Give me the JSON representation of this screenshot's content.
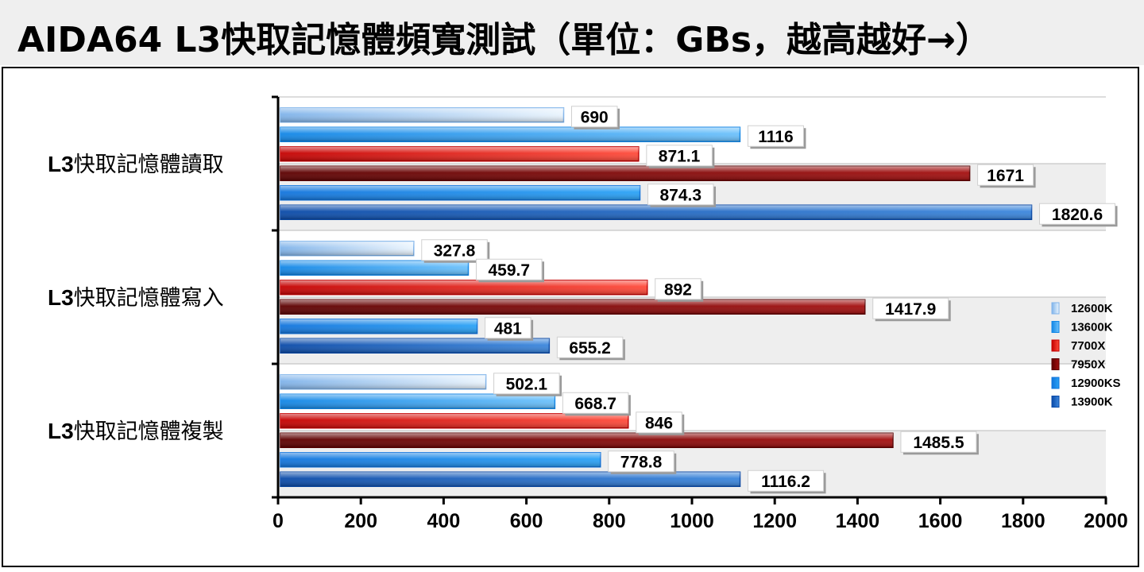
{
  "header": {
    "title": "AIDA64 L3快取記憶體頻寬測試（單位：GBs，越高越好→）"
  },
  "chart_data": {
    "type": "bar",
    "orientation": "horizontal",
    "title": "AIDA64 L3快取記憶體頻寬測試（單位：GBs，越高越好→）",
    "categories": [
      "L3快取記憶體讀取",
      "L3快取記憶體寫入",
      "L3快取記憶體複製"
    ],
    "series": [
      {
        "name": "12600K",
        "values": [
          690,
          327.8,
          502.1
        ],
        "labels": [
          "690",
          "327.8",
          "502.1"
        ],
        "color_dark": "#7fb3ea",
        "color_light": "#eaf4fd"
      },
      {
        "name": "13600K",
        "values": [
          1116,
          459.7,
          668.7
        ],
        "labels": [
          "1116",
          "459.7",
          "668.7"
        ],
        "color_dark": "#1186e6",
        "color_light": "#6cc1fb"
      },
      {
        "name": "7700X",
        "values": [
          871.1,
          892,
          846
        ],
        "labels": [
          "871.1",
          "892",
          "846"
        ],
        "color_dark": "#c40000",
        "color_light": "#ff4a3a"
      },
      {
        "name": "7950X",
        "values": [
          1671,
          1417.9,
          1485.5
        ],
        "labels": [
          "1671",
          "1417.9",
          "1485.5"
        ],
        "color_dark": "#5c0000",
        "color_light": "#a40f0f"
      },
      {
        "name": "12900KS",
        "values": [
          874.3,
          481,
          778.8
        ],
        "labels": [
          "874.3",
          "481",
          "778.8"
        ],
        "color_dark": "#1174dc",
        "color_light": "#2aa2f6"
      },
      {
        "name": "13900K",
        "values": [
          1820.6,
          655.2,
          1116.2
        ],
        "labels": [
          "1820.6",
          "655.2",
          "1116.2"
        ],
        "color_dark": "#0a4aa8",
        "color_light": "#3b86dc"
      }
    ],
    "xlim": [
      0,
      2000
    ],
    "xticks": [
      "0",
      "200",
      "400",
      "600",
      "800",
      "1000",
      "1200",
      "1400",
      "1600",
      "1800",
      "2000"
    ],
    "xlabel": "",
    "ylabel": "",
    "legend": "right",
    "grid": true
  }
}
